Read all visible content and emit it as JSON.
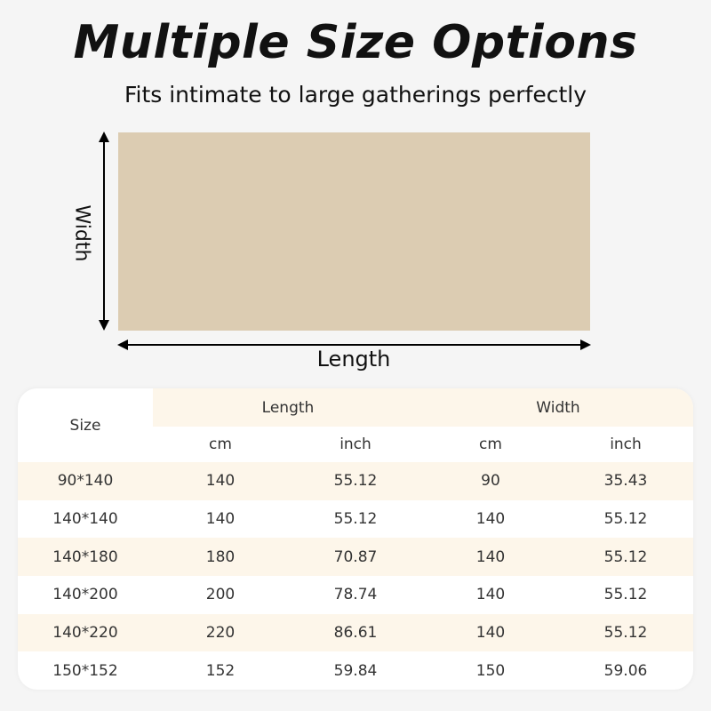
{
  "title": "Multiple Size Options",
  "subtitle": "Fits intimate to large gatherings perfectly",
  "diagram": {
    "width_label": "Width",
    "length_label": "Length",
    "rug_color": "#dcccb2"
  },
  "table": {
    "size_header": "Size",
    "length_header": "Length",
    "width_header": "Width",
    "units": [
      "cm",
      "inch",
      "cm",
      "inch"
    ],
    "rows": [
      {
        "size": "90*140",
        "length_cm": "140",
        "length_inch": "55.12",
        "width_cm": "90",
        "width_inch": "35.43"
      },
      {
        "size": "140*140",
        "length_cm": "140",
        "length_inch": "55.12",
        "width_cm": "140",
        "width_inch": "55.12"
      },
      {
        "size": "140*180",
        "length_cm": "180",
        "length_inch": "70.87",
        "width_cm": "140",
        "width_inch": "55.12"
      },
      {
        "size": "140*200",
        "length_cm": "200",
        "length_inch": "78.74",
        "width_cm": "140",
        "width_inch": "55.12"
      },
      {
        "size": "140*220",
        "length_cm": "220",
        "length_inch": "86.61",
        "width_cm": "140",
        "width_inch": "55.12"
      },
      {
        "size": "150*152",
        "length_cm": "152",
        "length_inch": "59.84",
        "width_cm": "150",
        "width_inch": "59.06"
      }
    ],
    "stripe_color": "#fdf6ea"
  }
}
